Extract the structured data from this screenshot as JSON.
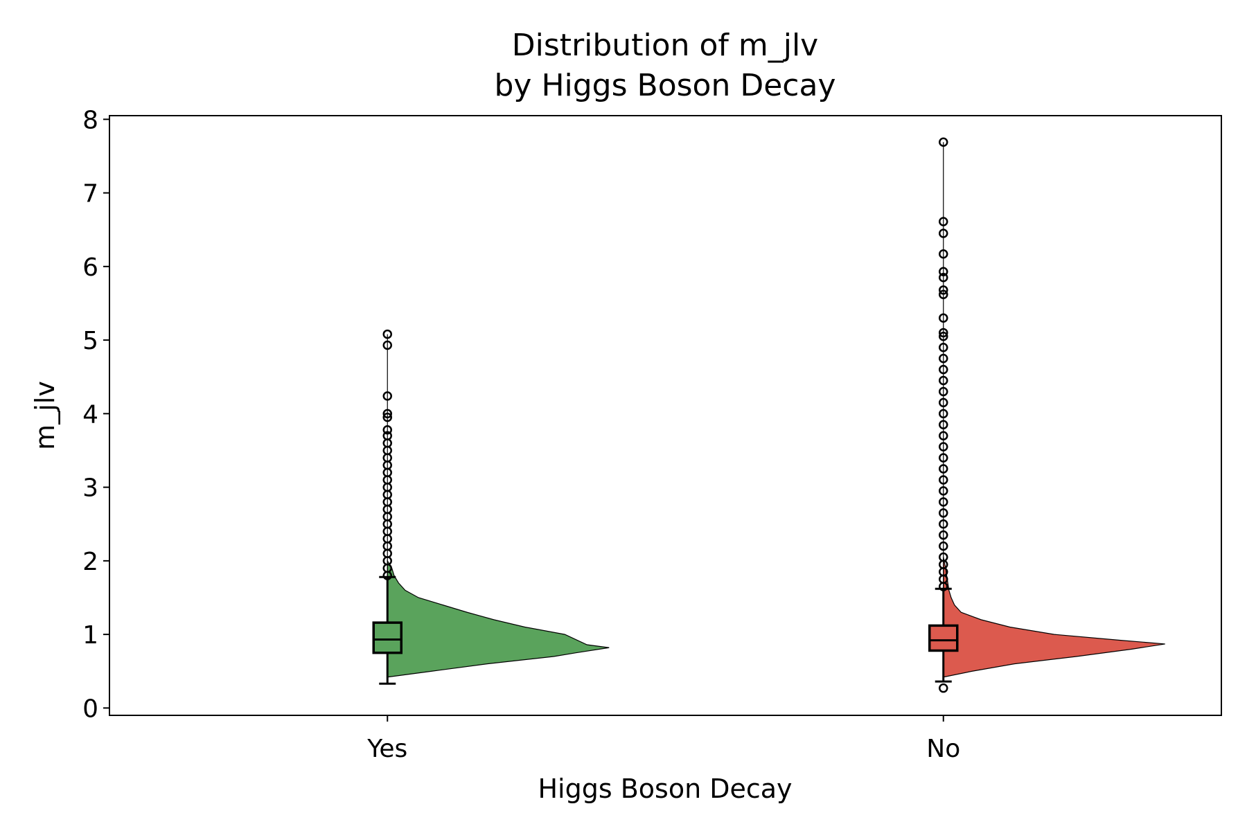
{
  "chart_data": {
    "type": "half-violin-box",
    "title_line1": "Distribution of m_jlv",
    "title_line2": "by Higgs Boson Decay",
    "xlabel": "Higgs Boson Decay",
    "ylabel": "m_jlv",
    "categories": [
      "Yes",
      "No"
    ],
    "ylim": [
      -0.1,
      8.05
    ],
    "yticks": [
      0,
      1,
      2,
      3,
      4,
      5,
      6,
      7,
      8
    ],
    "ytick_labels": [
      "0",
      "1",
      "2",
      "3",
      "4",
      "5",
      "6",
      "7",
      "8"
    ],
    "grid": false,
    "series": [
      {
        "category": "Yes",
        "color": "#5aa35c",
        "box": {
          "whisker_low": 0.33,
          "q1": 0.75,
          "median": 0.93,
          "q3": 1.16,
          "whisker_high": 1.78
        },
        "outliers": [
          1.8,
          1.9,
          2.0,
          2.1,
          2.2,
          2.3,
          2.4,
          2.5,
          2.6,
          2.7,
          2.8,
          2.9,
          3.0,
          3.1,
          3.2,
          3.3,
          3.4,
          3.5,
          3.6,
          3.7,
          3.78,
          3.95,
          4.0,
          4.24,
          4.93,
          5.08
        ],
        "density": [
          [
            0.42,
            0.0
          ],
          [
            0.5,
            0.2
          ],
          [
            0.6,
            0.45
          ],
          [
            0.7,
            0.75
          ],
          [
            0.75,
            0.85
          ],
          [
            0.82,
            1.0
          ],
          [
            0.86,
            0.9
          ],
          [
            1.0,
            0.8
          ],
          [
            1.1,
            0.62
          ],
          [
            1.2,
            0.48
          ],
          [
            1.3,
            0.36
          ],
          [
            1.4,
            0.25
          ],
          [
            1.5,
            0.14
          ],
          [
            1.6,
            0.08
          ],
          [
            1.7,
            0.05
          ],
          [
            1.8,
            0.03
          ],
          [
            1.9,
            0.02
          ],
          [
            2.0,
            0.0
          ]
        ]
      },
      {
        "category": "No",
        "color": "#dc5a4e",
        "box": {
          "whisker_low": 0.36,
          "q1": 0.78,
          "median": 0.92,
          "q3": 1.12,
          "whisker_high": 1.62
        },
        "outliers": [
          0.27,
          1.65,
          1.75,
          1.85,
          1.95,
          2.05,
          2.2,
          2.35,
          2.5,
          2.65,
          2.8,
          2.95,
          3.1,
          3.25,
          3.4,
          3.55,
          3.7,
          3.85,
          4.0,
          4.15,
          4.3,
          4.45,
          4.6,
          4.75,
          4.9,
          5.05,
          5.1,
          5.3,
          5.62,
          5.68,
          5.85,
          5.93,
          6.17,
          6.45,
          6.61,
          7.69
        ],
        "density": [
          [
            0.42,
            0.0
          ],
          [
            0.5,
            0.13
          ],
          [
            0.6,
            0.32
          ],
          [
            0.7,
            0.6
          ],
          [
            0.8,
            0.85
          ],
          [
            0.87,
            1.0
          ],
          [
            0.92,
            0.8
          ],
          [
            1.0,
            0.5
          ],
          [
            1.1,
            0.3
          ],
          [
            1.2,
            0.17
          ],
          [
            1.3,
            0.08
          ],
          [
            1.4,
            0.05
          ],
          [
            1.5,
            0.035
          ],
          [
            1.6,
            0.025
          ],
          [
            1.7,
            0.02
          ],
          [
            1.8,
            0.015
          ],
          [
            1.9,
            0.01
          ],
          [
            2.05,
            0.0
          ]
        ]
      }
    ]
  }
}
